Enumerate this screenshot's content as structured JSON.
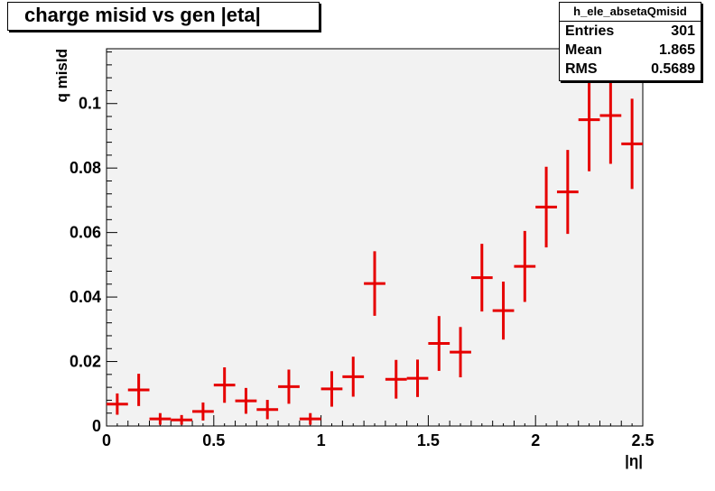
{
  "chart_data": {
    "type": "scatter",
    "title": "charge misid vs gen |eta|",
    "xlabel": "|η|",
    "ylabel": "q misId",
    "xlim": [
      0,
      2.5
    ],
    "ylim": [
      0,
      0.117
    ],
    "x_ticks": [
      "0",
      "0.5",
      "1",
      "1.5",
      "2",
      "2.5"
    ],
    "y_ticks": [
      "0",
      "0.02",
      "0.04",
      "0.06",
      "0.08",
      "0.1"
    ],
    "bin_width": 0.1,
    "x": [
      0.05,
      0.15,
      0.25,
      0.35,
      0.45,
      0.55,
      0.65,
      0.75,
      0.85,
      0.95,
      1.05,
      1.15,
      1.25,
      1.35,
      1.45,
      1.55,
      1.65,
      1.75,
      1.85,
      1.95,
      2.05,
      2.15,
      2.25,
      2.35,
      2.45
    ],
    "values": [
      0.0068,
      0.0112,
      0.0022,
      0.0019,
      0.0045,
      0.0127,
      0.0078,
      0.0051,
      0.0122,
      0.0022,
      0.0115,
      0.0153,
      0.0442,
      0.0145,
      0.0148,
      0.0256,
      0.0229,
      0.046,
      0.0358,
      0.0495,
      0.0679,
      0.0726,
      0.095,
      0.0963,
      0.0875
    ],
    "errors": [
      0.0033,
      0.005,
      0.0018,
      0.0015,
      0.0028,
      0.0055,
      0.004,
      0.003,
      0.0053,
      0.0018,
      0.0055,
      0.0062,
      0.01,
      0.006,
      0.0058,
      0.0085,
      0.0078,
      0.0105,
      0.009,
      0.011,
      0.0125,
      0.013,
      0.016,
      0.015,
      0.014
    ],
    "grid": false,
    "marker_color": "#e60000",
    "plot_background": "#f2f2f2"
  },
  "stats": {
    "name": "h_ele_absetaQmisid",
    "rows": [
      {
        "label": "Entries",
        "value": "301"
      },
      {
        "label": "Mean",
        "value": "1.865"
      },
      {
        "label": "RMS",
        "value": "0.5689"
      }
    ]
  }
}
